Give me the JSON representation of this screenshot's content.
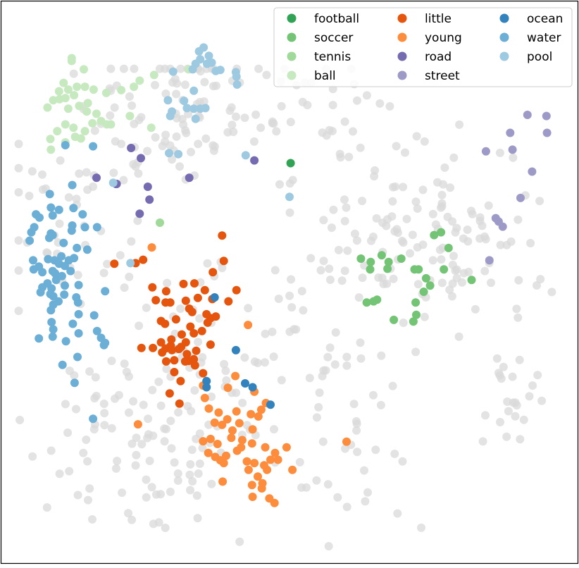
{
  "chart_data": {
    "type": "scatter",
    "title": "",
    "xlabel": "",
    "ylabel": "",
    "axes_ticks_visible": false,
    "xlim": [
      0,
      100
    ],
    "ylim": [
      0,
      100
    ],
    "legend_position": "top-right",
    "legend_columns": 3,
    "background_points": {
      "color": "#d9d9d9",
      "count": 520
    },
    "series": [
      {
        "name": "football",
        "color": "#31a354",
        "points": [
          [
            50.2,
            71.2
          ]
        ]
      },
      {
        "name": "soccer",
        "color": "#74c476",
        "points": [
          [
            75.1,
            58.4
          ],
          [
            76.3,
            58.9
          ],
          [
            77.6,
            56.1
          ],
          [
            62.4,
            54.2
          ],
          [
            64.0,
            52.3
          ],
          [
            66.0,
            54.8
          ],
          [
            67.2,
            53.6
          ],
          [
            69.4,
            54.2
          ],
          [
            71.7,
            52.3
          ],
          [
            67.0,
            52.4
          ],
          [
            64.1,
            53.6
          ],
          [
            73.7,
            50.7
          ],
          [
            72.4,
            52.3
          ],
          [
            76.8,
            52.3
          ],
          [
            81.6,
            50.4
          ],
          [
            74.4,
            49.4
          ],
          [
            73.3,
            48.3
          ],
          [
            63.4,
            46.4
          ],
          [
            65.2,
            46.9
          ],
          [
            64.6,
            46.6
          ],
          [
            71.9,
            46.4
          ],
          [
            72.0,
            44.2
          ],
          [
            68.1,
            43.3
          ],
          [
            71.5,
            43.0
          ]
        ]
      },
      {
        "name": "tennis",
        "color": "#a1d99b",
        "points": [
          [
            27.5,
            60.6
          ]
        ]
      },
      {
        "name": "ball",
        "color": "#c7e9c0",
        "points": [
          [
            12.2,
            89.9
          ],
          [
            14.3,
            87.9
          ],
          [
            13.1,
            84.8
          ],
          [
            11.1,
            82.8
          ],
          [
            10.0,
            84.0
          ],
          [
            10.8,
            85.5
          ],
          [
            11.6,
            84.3
          ],
          [
            12.6,
            83.3
          ],
          [
            14.5,
            84.8
          ],
          [
            15.0,
            81.9
          ],
          [
            16.0,
            84.3
          ],
          [
            18.2,
            83.7
          ],
          [
            8.0,
            81.1
          ],
          [
            9.0,
            82.4
          ],
          [
            10.1,
            82.6
          ],
          [
            11.6,
            80.9
          ],
          [
            13.5,
            81.4
          ],
          [
            14.8,
            80.4
          ],
          [
            16.5,
            80.0
          ],
          [
            18.3,
            78.1
          ],
          [
            19.0,
            78.1
          ],
          [
            17.3,
            78.7
          ],
          [
            15.8,
            78.3
          ],
          [
            14.5,
            76.9
          ],
          [
            13.8,
            75.6
          ],
          [
            12.5,
            77.5
          ],
          [
            12.8,
            75.9
          ],
          [
            11.1,
            78.1
          ],
          [
            9.7,
            76.9
          ],
          [
            8.5,
            75.5
          ],
          [
            11.1,
            74.9
          ],
          [
            8.6,
            73.6
          ],
          [
            12.2,
            89.4
          ],
          [
            20.8,
            84.2
          ],
          [
            23.0,
            84.8
          ],
          [
            24.0,
            85.9
          ],
          [
            26.5,
            86.9
          ],
          [
            32.5,
            87.9
          ],
          [
            26.0,
            77.5
          ],
          [
            22.3,
            79.6
          ]
        ]
      },
      {
        "name": "little",
        "color": "#e6550d",
        "points": [
          [
            38.3,
            58.3
          ],
          [
            38.6,
            53.8
          ],
          [
            23.3,
            53.4
          ],
          [
            24.6,
            54.0
          ],
          [
            36.7,
            51.8
          ],
          [
            31.6,
            49.7
          ],
          [
            33.5,
            49.8
          ],
          [
            26.2,
            49.1
          ],
          [
            28.6,
            48.4
          ],
          [
            35.3,
            48.6
          ],
          [
            26.8,
            46.8
          ],
          [
            28.5,
            46.4
          ],
          [
            29.3,
            46.4
          ],
          [
            32.0,
            46.7
          ],
          [
            34.1,
            47.2
          ],
          [
            36.6,
            47.0
          ],
          [
            40.8,
            48.6
          ],
          [
            39.4,
            46.6
          ],
          [
            32.6,
            45.3
          ],
          [
            33.1,
            44.7
          ],
          [
            35.6,
            44.3
          ],
          [
            36.3,
            43.6
          ],
          [
            27.7,
            43.1
          ],
          [
            28.4,
            42.6
          ],
          [
            30.3,
            43.4
          ],
          [
            32.8,
            42.1
          ],
          [
            35.8,
            42.8
          ],
          [
            37.2,
            43.9
          ],
          [
            34.8,
            41.3
          ],
          [
            33.4,
            40.9
          ],
          [
            31.3,
            40.7
          ],
          [
            29.5,
            39.8
          ],
          [
            27.7,
            39.3
          ],
          [
            26.3,
            38.3
          ],
          [
            24.3,
            38.3
          ],
          [
            33.8,
            37.8
          ],
          [
            32.2,
            37.2
          ],
          [
            30.0,
            36.1
          ],
          [
            28.6,
            35.9
          ],
          [
            27.9,
            37.5
          ],
          [
            31.2,
            38.5
          ],
          [
            30.8,
            38.1
          ],
          [
            32.0,
            39.3
          ],
          [
            29.4,
            38.7
          ],
          [
            28.5,
            38.2
          ],
          [
            36.3,
            38.9
          ],
          [
            29.6,
            37.9
          ],
          [
            32.5,
            36.0
          ],
          [
            30.0,
            34.0
          ],
          [
            31.1,
            32.4
          ],
          [
            31.9,
            35.9
          ],
          [
            33.4,
            36.3
          ],
          [
            33.6,
            35.2
          ],
          [
            35.0,
            33.8
          ],
          [
            29.2,
            30.2
          ],
          [
            30.9,
            28.4
          ],
          [
            19.6,
            53.3
          ]
        ]
      },
      {
        "name": "young",
        "color": "#fd8d3c",
        "points": [
          [
            26.1,
            56.2
          ],
          [
            42.8,
            42.4
          ],
          [
            40.6,
            33.3
          ],
          [
            43.9,
            30.5
          ],
          [
            39.3,
            31.2
          ],
          [
            36.0,
            27.5
          ],
          [
            37.7,
            26.8
          ],
          [
            39.2,
            25.6
          ],
          [
            40.8,
            27.0
          ],
          [
            43.3,
            26.5
          ],
          [
            45.1,
            27.3
          ],
          [
            37.0,
            25.0
          ],
          [
            38.3,
            24.6
          ],
          [
            40.1,
            23.6
          ],
          [
            41.3,
            24.9
          ],
          [
            43.6,
            23.8
          ],
          [
            44.6,
            26.1
          ],
          [
            45.9,
            28.5
          ],
          [
            39.9,
            22.3
          ],
          [
            41.8,
            21.9
          ],
          [
            43.5,
            21.3
          ],
          [
            45.8,
            20.6
          ],
          [
            47.5,
            19.6
          ],
          [
            37.5,
            21.2
          ],
          [
            36.3,
            22.1
          ],
          [
            35.0,
            21.7
          ],
          [
            35.9,
            19.6
          ],
          [
            37.1,
            18.9
          ],
          [
            38.0,
            18.3
          ],
          [
            39.0,
            19.1
          ],
          [
            40.9,
            20.0
          ],
          [
            41.6,
            20.6
          ],
          [
            42.6,
            18.1
          ],
          [
            43.9,
            17.8
          ],
          [
            45.6,
            17.4
          ],
          [
            46.7,
            18.4
          ],
          [
            48.0,
            18.4
          ],
          [
            49.5,
            20.6
          ],
          [
            38.6,
            17.8
          ],
          [
            42.9,
            16.6
          ],
          [
            44.5,
            15.4
          ],
          [
            45.3,
            14.2
          ],
          [
            46.1,
            16.6
          ],
          [
            50.5,
            16.6
          ],
          [
            38.4,
            14.5
          ],
          [
            43.5,
            13.9
          ],
          [
            45.2,
            13.3
          ],
          [
            46.5,
            11.5
          ],
          [
            43.6,
            11.8
          ],
          [
            47.4,
            10.7
          ],
          [
            59.9,
            21.6
          ],
          [
            23.7,
            24.7
          ],
          [
            35.3,
            29.4
          ],
          [
            35.0,
            31.6
          ]
        ]
      },
      {
        "name": "road",
        "color": "#756bb1",
        "points": [
          [
            22.5,
            73.9
          ],
          [
            24.2,
            72.1
          ],
          [
            43.9,
            71.7
          ],
          [
            32.6,
            68.6
          ],
          [
            16.5,
            68.6
          ],
          [
            19.9,
            67.5
          ],
          [
            20.0,
            67.5
          ],
          [
            25.4,
            67.0
          ],
          [
            25.7,
            64.7
          ],
          [
            24.0,
            62.2
          ]
        ]
      },
      {
        "name": "street",
        "color": "#9e9ac8",
        "points": [
          [
            91.3,
            79.8
          ],
          [
            94.6,
            79.6
          ],
          [
            88.3,
            76.6
          ],
          [
            94.7,
            76.6
          ],
          [
            84.1,
            73.3
          ],
          [
            88.7,
            73.6
          ],
          [
            92.1,
            69.7
          ],
          [
            90.1,
            65.0
          ],
          [
            85.8,
            61.4
          ],
          [
            87.0,
            59.9
          ],
          [
            86.3,
            60.8
          ],
          [
            84.7,
            53.9
          ]
        ]
      },
      {
        "name": "ocean",
        "color": "#3182bd",
        "points": [
          [
            37.0,
            47.3
          ],
          [
            40.7,
            37.9
          ],
          [
            35.6,
            32.4
          ],
          [
            35.6,
            31.3
          ],
          [
            42.3,
            32.0
          ],
          [
            43.6,
            31.3
          ],
          [
            46.7,
            28.2
          ]
        ]
      },
      {
        "name": "water",
        "color": "#6baed6",
        "points": [
          [
            11.1,
            74.4
          ],
          [
            15.9,
            74.2
          ],
          [
            8.4,
            65.7
          ],
          [
            12.3,
            67.3
          ],
          [
            8.6,
            63.3
          ],
          [
            10.0,
            62.9
          ],
          [
            12.5,
            63.2
          ],
          [
            14.1,
            62.1
          ],
          [
            6.0,
            62.1
          ],
          [
            5.7,
            59.8
          ],
          [
            6.6,
            61.5
          ],
          [
            8.9,
            61.9
          ],
          [
            12.3,
            60.1
          ],
          [
            14.5,
            59.8
          ],
          [
            16.6,
            59.8
          ],
          [
            5.2,
            58.9
          ],
          [
            8.6,
            58.7
          ],
          [
            12.2,
            59.2
          ],
          [
            4.9,
            57.4
          ],
          [
            8.3,
            57.9
          ],
          [
            8.9,
            58.4
          ],
          [
            10.8,
            57.0
          ],
          [
            13.1,
            56.1
          ],
          [
            14.9,
            55.8
          ],
          [
            5.5,
            53.9
          ],
          [
            8.1,
            54.1
          ],
          [
            9.2,
            53.9
          ],
          [
            10.4,
            54.6
          ],
          [
            11.7,
            53.9
          ],
          [
            12.6,
            54.3
          ],
          [
            6.5,
            52.8
          ],
          [
            8.9,
            52.0
          ],
          [
            10.0,
            53.3
          ],
          [
            11.0,
            52.9
          ],
          [
            5.6,
            52.3
          ],
          [
            7.1,
            51.8
          ],
          [
            9.3,
            51.6
          ],
          [
            10.5,
            51.1
          ],
          [
            12.0,
            52.0
          ],
          [
            8.0,
            49.8
          ],
          [
            9.5,
            50.4
          ],
          [
            11.0,
            49.4
          ],
          [
            13.4,
            49.5
          ],
          [
            7.1,
            49.1
          ],
          [
            8.7,
            48.9
          ],
          [
            6.8,
            48.2
          ],
          [
            8.5,
            47.9
          ],
          [
            9.0,
            47.5
          ],
          [
            10.9,
            47.8
          ],
          [
            13.0,
            47.3
          ],
          [
            18.0,
            48.4
          ],
          [
            9.9,
            46.6
          ],
          [
            13.3,
            46.4
          ],
          [
            9.0,
            46.0
          ],
          [
            8.6,
            45.0
          ],
          [
            16.1,
            44.1
          ],
          [
            13.4,
            44.3
          ],
          [
            8.7,
            42.9
          ],
          [
            12.4,
            42.6
          ],
          [
            16.6,
            41.3
          ],
          [
            9.0,
            41.6
          ],
          [
            13.4,
            40.9
          ],
          [
            6.5,
            40.0
          ],
          [
            8.9,
            40.3
          ],
          [
            17.3,
            40.1
          ],
          [
            11.2,
            39.5
          ],
          [
            18.0,
            39.2
          ],
          [
            17.8,
            38.8
          ],
          [
            13.2,
            36.7
          ],
          [
            10.6,
            35.3
          ],
          [
            15.9,
            25.7
          ],
          [
            12.7,
            32.1
          ]
        ]
      },
      {
        "name": "pool",
        "color": "#9ecae1",
        "points": [
          [
            35.1,
            91.8
          ],
          [
            34.3,
            91.1
          ],
          [
            36.0,
            90.3
          ],
          [
            34.5,
            89.7
          ],
          [
            33.7,
            88.9
          ],
          [
            35.7,
            88.9
          ],
          [
            36.5,
            89.1
          ],
          [
            37.2,
            87.6
          ],
          [
            29.8,
            87.5
          ],
          [
            33.2,
            87.9
          ],
          [
            38.0,
            87.8
          ],
          [
            40.7,
            87.4
          ],
          [
            40.8,
            86.6
          ],
          [
            40.9,
            85.2
          ],
          [
            33.4,
            84.1
          ],
          [
            28.9,
            82.4
          ],
          [
            31.7,
            82.3
          ],
          [
            33.4,
            80.9
          ],
          [
            34.5,
            80.9
          ],
          [
            29.6,
            80.4
          ],
          [
            32.2,
            81.0
          ],
          [
            35.4,
            81.0
          ],
          [
            29.3,
            79.6
          ],
          [
            33.7,
            79.1
          ],
          [
            30.7,
            72.8
          ],
          [
            42.4,
            72.6
          ],
          [
            29.1,
            73.0
          ],
          [
            19.4,
            67.7
          ],
          [
            50.0,
            65.2
          ],
          [
            22.4,
            53.4
          ]
        ]
      }
    ]
  }
}
